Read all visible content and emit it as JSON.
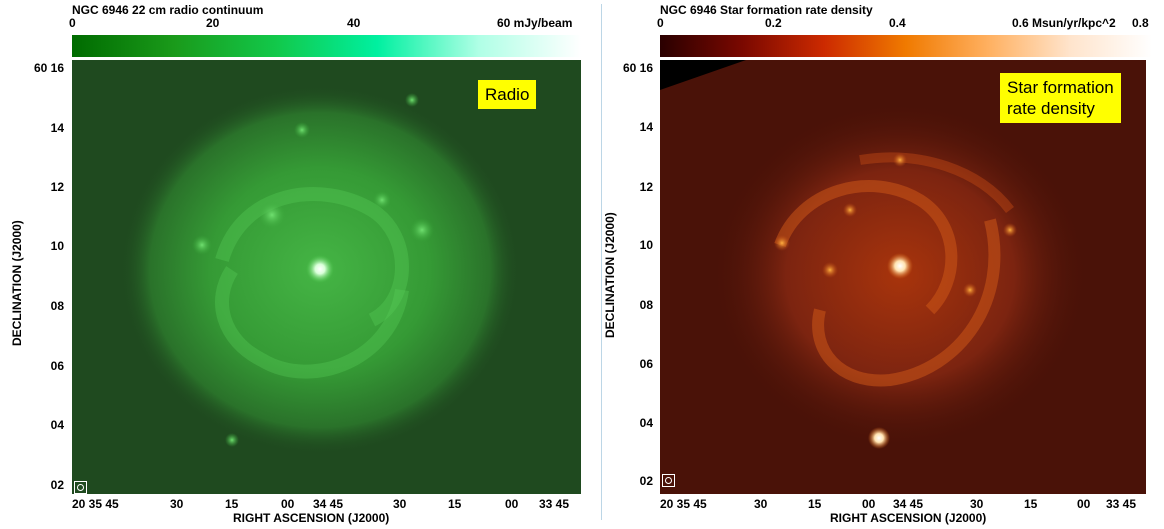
{
  "panels": [
    {
      "title": "NGC 6946  22 cm radio continuum",
      "colorbar_ticks": [
        "0",
        "20",
        "40",
        "60 mJy/beam"
      ],
      "label": "Radio",
      "colorbar_gradient": [
        "#006b00",
        "#1a9a1a",
        "#12c84a",
        "#00f0a0",
        "#b0ffe6",
        "#ffffff"
      ],
      "image_base_color": "#1f4a1f",
      "y_ticks": [
        "60 16",
        "14",
        "12",
        "10",
        "08",
        "06",
        "04",
        "02"
      ],
      "x_ticks": [
        "20 35 45",
        "30",
        "15",
        "00",
        "34 45",
        "30",
        "15",
        "00",
        "33 45"
      ],
      "xlabel": "RIGHT ASCENSION (J2000)",
      "ylabel": "DECLINATION (J2000)"
    },
    {
      "title": "NGC 6946  Star formation rate density",
      "colorbar_ticks": [
        "0",
        "0.2",
        "0.4",
        "0.6 Msun/yr/kpc^2",
        "0.8"
      ],
      "label": "Star formation rate density",
      "label_lines": [
        "Star formation",
        "rate density"
      ],
      "colorbar_gradient": [
        "#2a0000",
        "#7a0800",
        "#cc2a00",
        "#f07a00",
        "#ffb060",
        "#ffe4cc",
        "#ffffff"
      ],
      "image_base_color": "#4a1208",
      "y_ticks": [
        "60 16",
        "14",
        "12",
        "10",
        "08",
        "06",
        "04",
        "02"
      ],
      "x_ticks": [
        "20 35 45",
        "30",
        "15",
        "00",
        "34 45",
        "30",
        "15",
        "00",
        "33 45"
      ],
      "xlabel": "RIGHT ASCENSION (J2000)",
      "ylabel": "DECLINATION (J2000)"
    }
  ]
}
